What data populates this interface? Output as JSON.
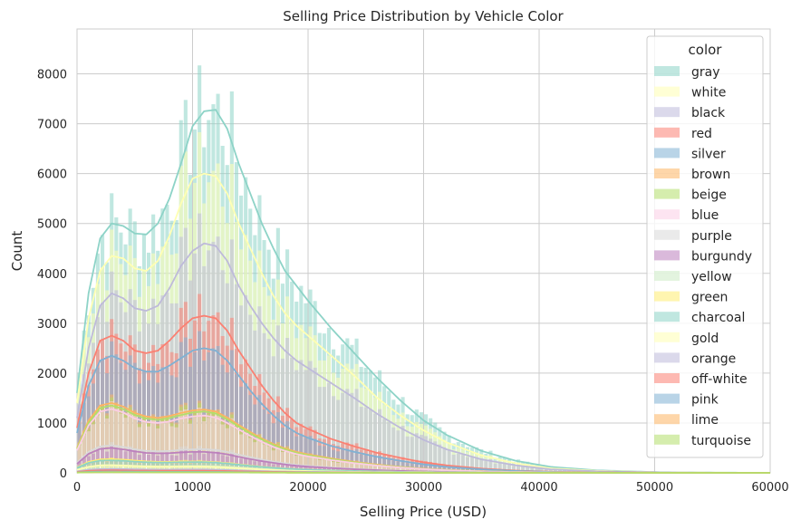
{
  "chart_data": {
    "type": "histogram",
    "title": "Selling Price Distribution by Vehicle Color",
    "xlabel": "Selling Price (USD)",
    "ylabel": "Count",
    "xlim": [
      0,
      60000
    ],
    "ylim": [
      0,
      8900
    ],
    "xticks": [
      "0",
      "10000",
      "20000",
      "30000",
      "40000",
      "50000",
      "60000"
    ],
    "yticks": [
      "0",
      "1000",
      "2000",
      "3000",
      "4000",
      "5000",
      "6000",
      "7000",
      "8000"
    ],
    "grid": true,
    "stacked": true,
    "kde": true,
    "legend": {
      "title": "color",
      "position": "upper-right"
    },
    "kde_x": [
      0,
      1000,
      2000,
      3000,
      4000,
      5000,
      6000,
      7000,
      8000,
      9000,
      10000,
      11000,
      12000,
      13000,
      14000,
      15000,
      16000,
      17000,
      18000,
      19000,
      20000,
      22000,
      24000,
      26000,
      28000,
      30000,
      32000,
      35000,
      38000,
      41000,
      45000,
      50000,
      55000,
      60000
    ],
    "series": [
      {
        "name": "gray",
        "color": "#8dd3c7",
        "kde": [
          1600,
          3600,
          4700,
          5000,
          4950,
          4800,
          4780,
          5000,
          5500,
          6200,
          6950,
          7250,
          7280,
          6900,
          6200,
          5600,
          5000,
          4500,
          4050,
          3750,
          3450,
          2900,
          2400,
          1900,
          1450,
          1050,
          760,
          440,
          240,
          120,
          50,
          15,
          5,
          0
        ]
      },
      {
        "name": "white",
        "color": "#ffffb3",
        "kde": [
          1400,
          3100,
          4050,
          4350,
          4300,
          4100,
          4050,
          4250,
          4750,
          5400,
          5900,
          6000,
          5950,
          5600,
          5000,
          4500,
          4000,
          3550,
          3200,
          2950,
          2750,
          2350,
          1950,
          1500,
          1150,
          850,
          610,
          350,
          190,
          90,
          40,
          12,
          4,
          0
        ]
      },
      {
        "name": "black",
        "color": "#bebada",
        "kde": [
          1100,
          2500,
          3350,
          3600,
          3500,
          3300,
          3250,
          3350,
          3700,
          4150,
          4450,
          4600,
          4550,
          4250,
          3750,
          3350,
          3000,
          2700,
          2450,
          2250,
          2100,
          1800,
          1500,
          1180,
          900,
          660,
          470,
          270,
          150,
          70,
          30,
          10,
          3,
          0
        ]
      },
      {
        "name": "red",
        "color": "#fb8072",
        "kde": [
          900,
          2000,
          2650,
          2750,
          2650,
          2450,
          2400,
          2450,
          2650,
          2900,
          3100,
          3150,
          3100,
          2850,
          2450,
          2100,
          1750,
          1450,
          1200,
          1000,
          880,
          680,
          530,
          400,
          300,
          210,
          150,
          85,
          45,
          22,
          10,
          3,
          1,
          0
        ]
      },
      {
        "name": "silver",
        "color": "#80b1d3",
        "kde": [
          800,
          1750,
          2250,
          2350,
          2250,
          2100,
          2030,
          2030,
          2150,
          2300,
          2450,
          2500,
          2450,
          2250,
          1950,
          1650,
          1380,
          1150,
          950,
          800,
          700,
          540,
          420,
          320,
          240,
          170,
          120,
          70,
          38,
          18,
          8,
          2,
          1,
          0
        ]
      },
      {
        "name": "brown",
        "color": "#fdb462",
        "kde": [
          500,
          1050,
          1350,
          1400,
          1330,
          1200,
          1130,
          1100,
          1140,
          1200,
          1250,
          1270,
          1230,
          1110,
          960,
          820,
          690,
          580,
          490,
          420,
          370,
          290,
          220,
          165,
          120,
          85,
          60,
          34,
          18,
          9,
          4,
          1,
          0,
          0
        ]
      },
      {
        "name": "beige",
        "color": "#b3de69",
        "kde": [
          480,
          1000,
          1300,
          1350,
          1280,
          1160,
          1090,
          1060,
          1100,
          1160,
          1210,
          1230,
          1190,
          1070,
          930,
          790,
          670,
          560,
          470,
          400,
          355,
          275,
          210,
          155,
          115,
          80,
          56,
          32,
          17,
          8,
          3,
          1,
          0,
          0
        ]
      },
      {
        "name": "blue",
        "color": "#fccde5",
        "kde": [
          450,
          950,
          1230,
          1280,
          1210,
          1090,
          1020,
          1000,
          1030,
          1090,
          1130,
          1150,
          1110,
          1000,
          870,
          740,
          620,
          520,
          440,
          375,
          330,
          255,
          195,
          145,
          105,
          75,
          52,
          30,
          16,
          7,
          3,
          1,
          0,
          0
        ]
      },
      {
        "name": "purple",
        "color": "#d9d9d9",
        "kde": [
          200,
          420,
          530,
          550,
          520,
          470,
          440,
          430,
          440,
          460,
          470,
          475,
          460,
          420,
          365,
          315,
          265,
          225,
          190,
          160,
          140,
          108,
          82,
          60,
          44,
          31,
          22,
          12,
          6,
          3,
          1,
          0,
          0,
          0
        ]
      },
      {
        "name": "burgundy",
        "color": "#bc80bd",
        "kde": [
          180,
          380,
          480,
          500,
          470,
          430,
          400,
          390,
          395,
          410,
          420,
          420,
          405,
          370,
          320,
          275,
          235,
          200,
          168,
          142,
          124,
          96,
          72,
          53,
          39,
          27,
          19,
          11,
          5,
          2,
          1,
          0,
          0,
          0
        ]
      },
      {
        "name": "yellow",
        "color": "#ccebc5",
        "kde": [
          60,
          120,
          150,
          155,
          150,
          140,
          135,
          130,
          132,
          135,
          138,
          138,
          133,
          122,
          107,
          93,
          80,
          68,
          57,
          48,
          42,
          32,
          24,
          18,
          13,
          9,
          6,
          3,
          2,
          1,
          0,
          0,
          0,
          0
        ]
      },
      {
        "name": "green",
        "color": "#ffed6f",
        "kde": [
          110,
          220,
          270,
          275,
          265,
          245,
          230,
          220,
          220,
          225,
          228,
          225,
          215,
          195,
          170,
          145,
          123,
          104,
          88,
          75,
          65,
          50,
          38,
          28,
          20,
          14,
          10,
          5,
          3,
          1,
          0,
          0,
          0,
          0
        ]
      },
      {
        "name": "charcoal",
        "color": "#8dd3c7",
        "kde": [
          100,
          200,
          245,
          250,
          242,
          225,
          212,
          205,
          207,
          212,
          216,
          214,
          205,
          186,
          162,
          139,
          118,
          100,
          85,
          72,
          63,
          48,
          37,
          27,
          20,
          14,
          9,
          5,
          3,
          1,
          0,
          0,
          0,
          0
        ]
      },
      {
        "name": "gold",
        "color": "#ffffb3",
        "kde": [
          60,
          120,
          150,
          152,
          146,
          136,
          128,
          124,
          124,
          126,
          127,
          125,
          119,
          108,
          94,
          80,
          68,
          58,
          49,
          41,
          36,
          27,
          21,
          15,
          11,
          8,
          5,
          3,
          1,
          1,
          0,
          0,
          0,
          0
        ]
      },
      {
        "name": "orange",
        "color": "#bebada",
        "kde": [
          30,
          60,
          75,
          78,
          75,
          70,
          66,
          64,
          64,
          65,
          66,
          65,
          62,
          56,
          49,
          42,
          36,
          30,
          26,
          22,
          19,
          14,
          11,
          8,
          6,
          4,
          3,
          1,
          1,
          0,
          0,
          0,
          0,
          0
        ]
      },
      {
        "name": "off-white",
        "color": "#fb8072",
        "kde": [
          20,
          40,
          50,
          52,
          50,
          46,
          44,
          42,
          42,
          43,
          43,
          42,
          40,
          36,
          32,
          27,
          23,
          20,
          17,
          14,
          12,
          9,
          7,
          5,
          4,
          3,
          2,
          1,
          0,
          0,
          0,
          0,
          0,
          0
        ]
      },
      {
        "name": "pink",
        "color": "#80b1d3",
        "kde": [
          10,
          20,
          25,
          26,
          25,
          23,
          22,
          21,
          21,
          21,
          21,
          21,
          20,
          18,
          16,
          14,
          12,
          10,
          8,
          7,
          6,
          5,
          4,
          3,
          2,
          1,
          1,
          0,
          0,
          0,
          0,
          0,
          0,
          0
        ]
      },
      {
        "name": "lime",
        "color": "#fdb462",
        "kde": [
          5,
          10,
          12,
          13,
          12,
          11,
          11,
          10,
          10,
          10,
          10,
          10,
          10,
          9,
          8,
          7,
          6,
          5,
          4,
          3,
          3,
          2,
          2,
          1,
          1,
          1,
          0,
          0,
          0,
          0,
          0,
          0,
          0,
          0
        ]
      },
      {
        "name": "turquoise",
        "color": "#b3de69",
        "kde": [
          5,
          10,
          12,
          12,
          12,
          11,
          10,
          10,
          10,
          10,
          10,
          10,
          9,
          8,
          7,
          6,
          5,
          4,
          4,
          3,
          3,
          2,
          2,
          1,
          1,
          1,
          0,
          0,
          0,
          0,
          0,
          0,
          0,
          0
        ]
      }
    ]
  }
}
